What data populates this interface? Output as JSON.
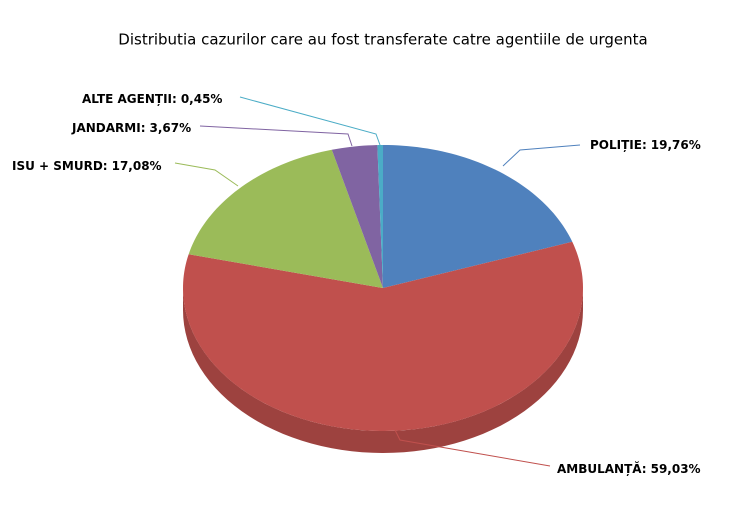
{
  "chart_data": {
    "type": "pie",
    "title": "Distributia cazurilor care au fost transferate catre agentiile de urgenta",
    "categories": [
      "POLIȚIE:",
      "AMBULANȚĂ:",
      "ISU + SMURD:",
      "JANDARMI:",
      "ALTE AGENȚII:"
    ],
    "values": [
      19.76,
      59.03,
      17.08,
      3.67,
      0.45
    ],
    "value_labels": [
      "19,76%",
      "59,03%",
      "17,08%",
      "3,67%",
      "0,45%"
    ],
    "colors": [
      "#4f81bd",
      "#c0504d",
      "#9bbb59",
      "#8064a2",
      "#4bacc6"
    ]
  }
}
